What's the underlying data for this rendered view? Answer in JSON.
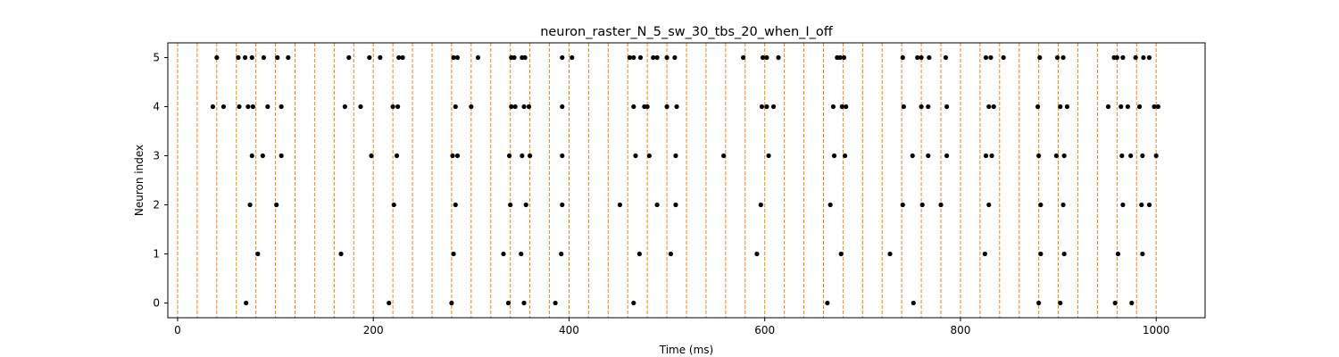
{
  "chart_data": {
    "type": "scatter",
    "title": "neuron_raster_N_5_sw_30_tbs_20_when_I_off",
    "xlabel": "Time (ms)",
    "ylabel": "Neuron index",
    "xlim": [
      -10,
      1050
    ],
    "ylim": [
      -0.3,
      5.3
    ],
    "xticks": [
      0,
      200,
      400,
      600,
      800,
      1000
    ],
    "yticks": [
      0,
      1,
      2,
      3,
      4,
      5
    ],
    "grid": false,
    "marker_color": "#000000",
    "vline_color": "#ff7f0e",
    "vline_style": "dashed",
    "vlines": [
      0,
      20,
      40,
      60,
      80,
      100,
      120,
      140,
      160,
      180,
      200,
      220,
      240,
      260,
      280,
      300,
      320,
      340,
      360,
      380,
      400,
      420,
      440,
      460,
      480,
      500,
      520,
      540,
      560,
      580,
      600,
      620,
      640,
      660,
      680,
      700,
      720,
      740,
      760,
      780,
      800,
      820,
      840,
      860,
      880,
      900,
      920,
      940,
      960,
      980,
      1000
    ],
    "spikes": [
      {
        "neuron": 0,
        "times": [
          70,
          216,
          280,
          338,
          354,
          386,
          466,
          664,
          752,
          880,
          902,
          958,
          975
        ]
      },
      {
        "neuron": 1,
        "times": [
          82,
          167,
          282,
          333,
          351,
          392,
          472,
          504,
          592,
          678,
          728,
          825,
          882,
          906,
          961,
          986
        ]
      },
      {
        "neuron": 2,
        "times": [
          74,
          101,
          221,
          284,
          340,
          356,
          393,
          452,
          490,
          509,
          596,
          667,
          741,
          761,
          780,
          829,
          882,
          905,
          966,
          985,
          993
        ]
      },
      {
        "neuron": 3,
        "times": [
          76,
          87,
          106,
          198,
          224,
          281,
          286,
          339,
          352,
          360,
          393,
          468,
          482,
          509,
          558,
          604,
          671,
          682,
          751,
          767,
          786,
          826,
          832,
          880,
          898,
          906,
          965,
          974,
          986,
          1000
        ]
      },
      {
        "neuron": 4,
        "times": [
          36,
          47,
          63,
          72,
          77,
          92,
          106,
          171,
          187,
          220,
          225,
          284,
          300,
          341,
          345,
          354,
          359,
          393,
          466,
          477,
          480,
          500,
          510,
          597,
          602,
          609,
          670,
          679,
          683,
          742,
          760,
          767,
          786,
          829,
          834,
          879,
          902,
          909,
          951,
          964,
          971,
          983,
          998,
          1002
        ]
      },
      {
        "neuron": 5,
        "times": [
          40,
          62,
          69,
          76,
          88,
          102,
          113,
          175,
          196,
          207,
          226,
          230,
          282,
          286,
          307,
          341,
          344,
          352,
          355,
          393,
          403,
          462,
          466,
          473,
          486,
          490,
          500,
          508,
          578,
          598,
          602,
          614,
          674,
          677,
          681,
          741,
          756,
          760,
          768,
          785,
          826,
          831,
          844,
          881,
          899,
          905,
          957,
          960,
          966,
          979,
          987,
          993
        ]
      }
    ]
  }
}
